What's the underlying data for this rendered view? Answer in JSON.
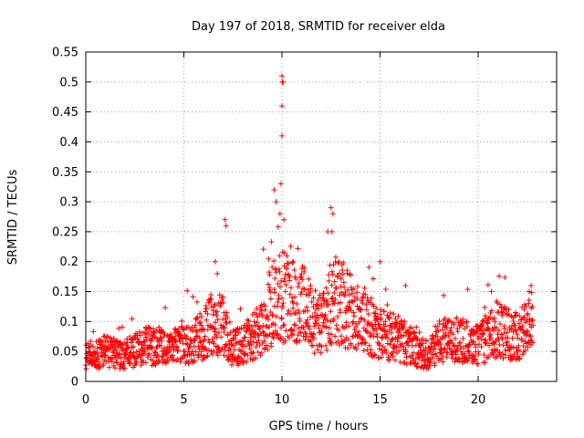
{
  "chart_data": {
    "type": "scatter",
    "title": "Day 197 of 2018, SRMTID for receiver elda",
    "xlabel": "GPS time / hours",
    "ylabel": "SRMTID / TECUs",
    "xlim": [
      0,
      24
    ],
    "ylim": [
      0,
      0.55
    ],
    "x_ticks": [
      0,
      5,
      10,
      15,
      20
    ],
    "x_tick_labels": [
      "0",
      "5",
      "10",
      "15",
      "20"
    ],
    "y_ticks": [
      0,
      0.05,
      0.1,
      0.15,
      0.2,
      0.25,
      0.3,
      0.35,
      0.4,
      0.45,
      0.5,
      0.55
    ],
    "y_tick_labels": [
      "0",
      "0.05",
      "0.1",
      "0.15",
      "0.2",
      "0.25",
      "0.3",
      "0.35",
      "0.4",
      "0.45",
      "0.5",
      "0.55"
    ],
    "grid": true,
    "marker": "+",
    "color": "#ff0000",
    "baseline_profile": {
      "x": [
        0,
        1,
        2,
        3,
        4,
        5,
        6,
        6.5,
        7,
        7.5,
        8,
        9,
        9.5,
        10,
        10.5,
        11,
        12,
        12.5,
        13,
        14,
        15,
        16,
        17,
        17.5,
        18,
        19,
        20,
        21,
        22,
        22.8
      ],
      "y": [
        0.04,
        0.05,
        0.045,
        0.06,
        0.055,
        0.06,
        0.08,
        0.1,
        0.09,
        0.055,
        0.06,
        0.09,
        0.13,
        0.14,
        0.14,
        0.13,
        0.09,
        0.13,
        0.13,
        0.1,
        0.08,
        0.07,
        0.05,
        0.045,
        0.065,
        0.07,
        0.06,
        0.085,
        0.075,
        0.1
      ]
    },
    "notable_points": {
      "x": [
        6.6,
        6.7,
        7.1,
        7.15,
        9.6,
        9.7,
        9.9,
        10.0,
        10.0,
        10.05,
        10.0,
        10.02,
        9.95,
        10.1,
        12.5,
        12.6,
        12.55,
        15.0,
        16.3,
        22.7,
        22.6
      ],
      "y": [
        0.2,
        0.18,
        0.27,
        0.26,
        0.32,
        0.3,
        0.28,
        0.41,
        0.46,
        0.5,
        0.51,
        0.5,
        0.33,
        0.27,
        0.29,
        0.28,
        0.25,
        0.2,
        0.16,
        0.16,
        0.15
      ]
    },
    "scatter_points": 1800,
    "scatter_x_range": [
      0,
      22.8
    ],
    "random_seed": 197
  }
}
